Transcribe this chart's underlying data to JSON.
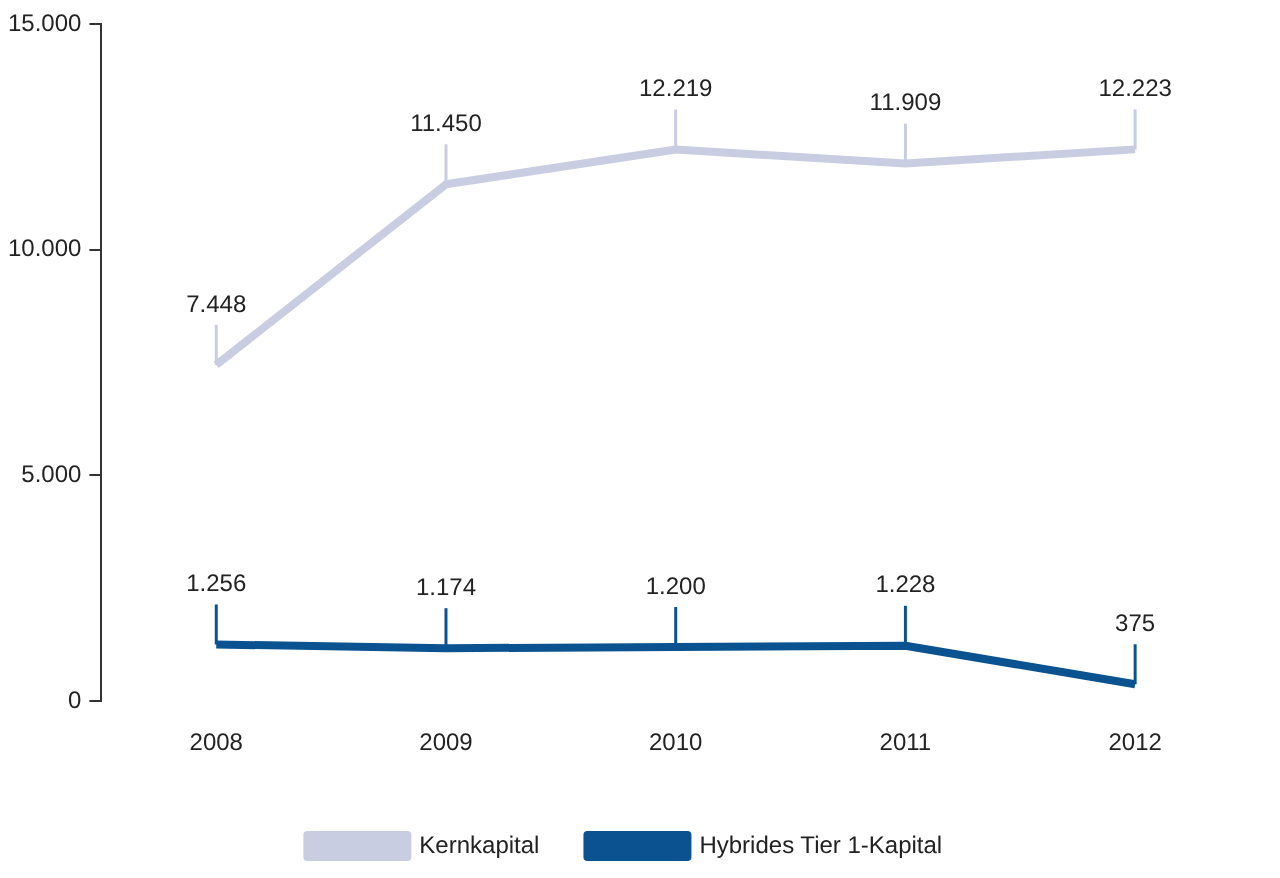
{
  "chart_data": {
    "type": "line",
    "categories": [
      "2008",
      "2009",
      "2010",
      "2011",
      "2012"
    ],
    "series": [
      {
        "name": "Kernkapital",
        "color": "#c9cde1",
        "values": [
          7448,
          11450,
          12219,
          11909,
          12223
        ],
        "value_labels": [
          "7.448",
          "11.450",
          "12.219",
          "11.909",
          "12.223"
        ]
      },
      {
        "name": "Hybrides Tier 1-Kapital",
        "color": "#0b5390",
        "values": [
          1256,
          1174,
          1200,
          1228,
          375
        ],
        "value_labels": [
          "1.256",
          "1.174",
          "1.200",
          "1.228",
          "375"
        ]
      }
    ],
    "ylim": [
      0,
      15000
    ],
    "yticks": [
      {
        "value": 0,
        "label": "0"
      },
      {
        "value": 5000,
        "label": "5.000"
      },
      {
        "value": 10000,
        "label": "10.000"
      },
      {
        "value": 15000,
        "label": "15.000"
      }
    ],
    "grid": false,
    "legend": "bottom",
    "marker": "none",
    "line_style": "solid"
  }
}
